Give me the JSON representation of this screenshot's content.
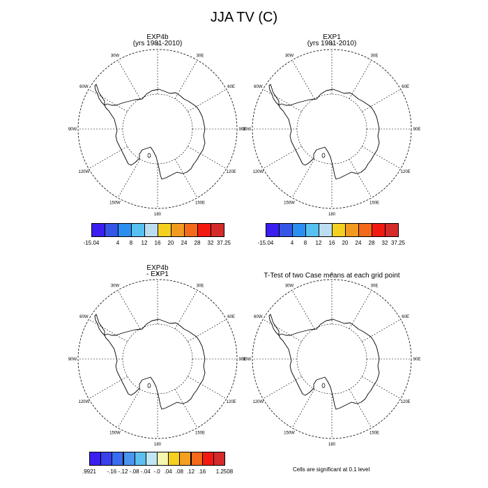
{
  "title": "JJA TV (C)",
  "panels": [
    {
      "title_line1": "EXP4b",
      "title_line2": "(yrs 1981-2010)"
    },
    {
      "title_line1": "EXP1",
      "title_line2": "(yrs 1981-2010)"
    },
    {
      "title_line1": "EXP4b",
      "title_line2": "- EXP1"
    },
    {
      "title_line1": "T-Test of two Case means at each grid point",
      "title_line2": ""
    }
  ],
  "longitude_labels": [
    "0",
    "30E",
    "60E",
    "90E",
    "120E",
    "150E",
    "180",
    "150W",
    "120W",
    "90W",
    "60W",
    "30W"
  ],
  "colorbar_abs": {
    "colors": [
      "#3a1ff0",
      "#3556e6",
      "#2a8ff0",
      "#56c0f0",
      "#bcdcf0",
      "#f5d020",
      "#f29a20",
      "#f26a1a",
      "#f21a10",
      "#d42a2a"
    ],
    "ticks": [
      "-15.04",
      "4",
      "8",
      "12",
      "16",
      "20",
      "24",
      "28",
      "32",
      "37.25"
    ]
  },
  "colorbar_diff": {
    "colors": [
      "#3a1ff0",
      "#3a40ec",
      "#3a6cf0",
      "#4a95f0",
      "#5cbff0",
      "#bfe6f5",
      "#f5f6b0",
      "#f5d020",
      "#f5a020",
      "#f26a1a",
      "#f21a10",
      "#d42a2a"
    ],
    "ticks": [
      ".9921",
      "-.16",
      "-.12",
      "-.08",
      "-.04",
      "-.0",
      ".04",
      ".08",
      ".12",
      ".16",
      "1.2508"
    ]
  },
  "note": "Cells are significant at 0.1 level"
}
